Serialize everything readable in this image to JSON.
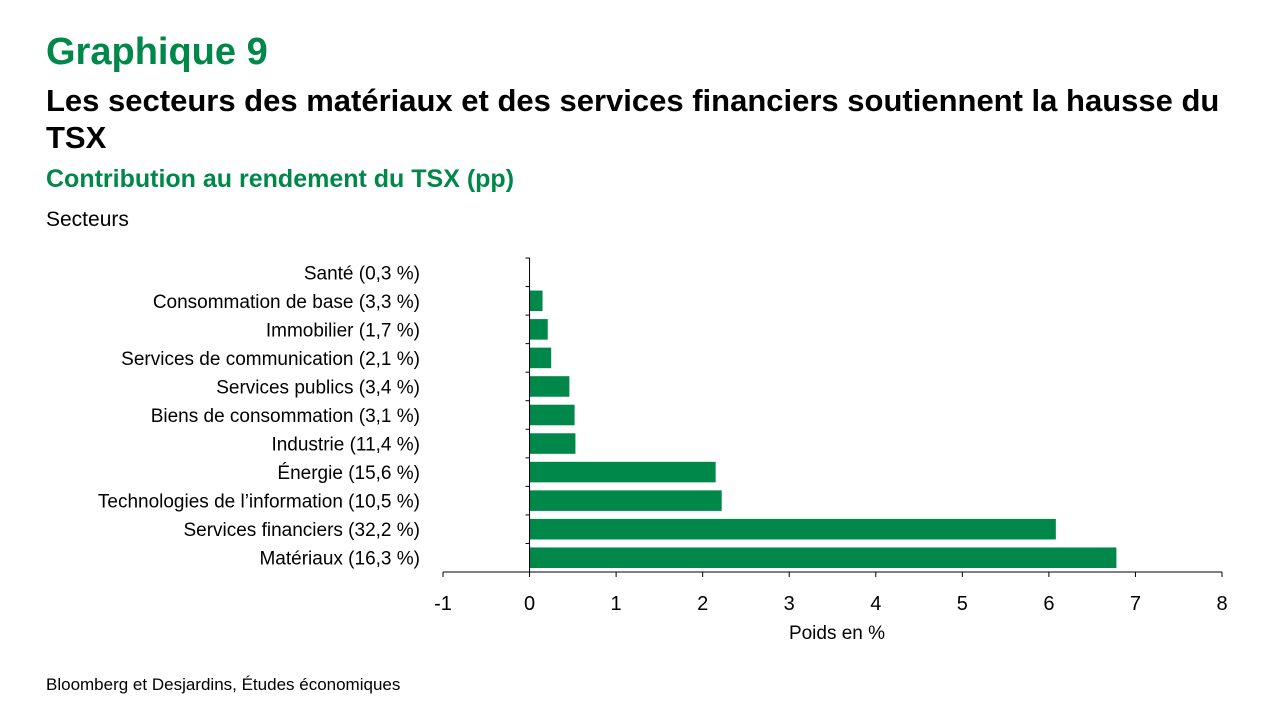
{
  "header": {
    "graph_number": "Graphique 9",
    "headline": "Les secteurs des matériaux et des services financiers soutiennent la hausse du TSX",
    "subtitle": "Contribution au rendement du TSX (pp)"
  },
  "footer": {
    "source": "Bloomberg et Desjardins, Études économiques"
  },
  "colors": {
    "accent": "#00874A",
    "bar": "#00874A",
    "axis": "#000000"
  },
  "chart_data": {
    "type": "bar",
    "orientation": "horizontal",
    "title": "Contribution au rendement du TSX (pp)",
    "ylabel": "Secteurs",
    "xlabel": "Poids en %",
    "xlim": [
      -1,
      8
    ],
    "xticks": [
      "-1",
      "0",
      "1",
      "2",
      "3",
      "4",
      "5",
      "6",
      "7",
      "8"
    ],
    "grid": false,
    "legend": "none",
    "categories": [
      "Santé (0,3 %)",
      "Consommation de base (3,3 %)",
      "Immobilier (1,7 %)",
      "Services de communication (2,1 %)",
      "Services publics (3,4 %)",
      "Biens de consommation (3,1 %)",
      "Industrie (11,4 %)",
      "Énergie (15,6 %)",
      "Technologies de l’information (10,5 %)",
      "Services financiers (32,2 %)",
      "Matériaux (16,3 %)"
    ],
    "values": [
      0.0,
      0.15,
      0.21,
      0.25,
      0.46,
      0.52,
      0.53,
      2.15,
      2.22,
      6.08,
      6.78
    ]
  }
}
